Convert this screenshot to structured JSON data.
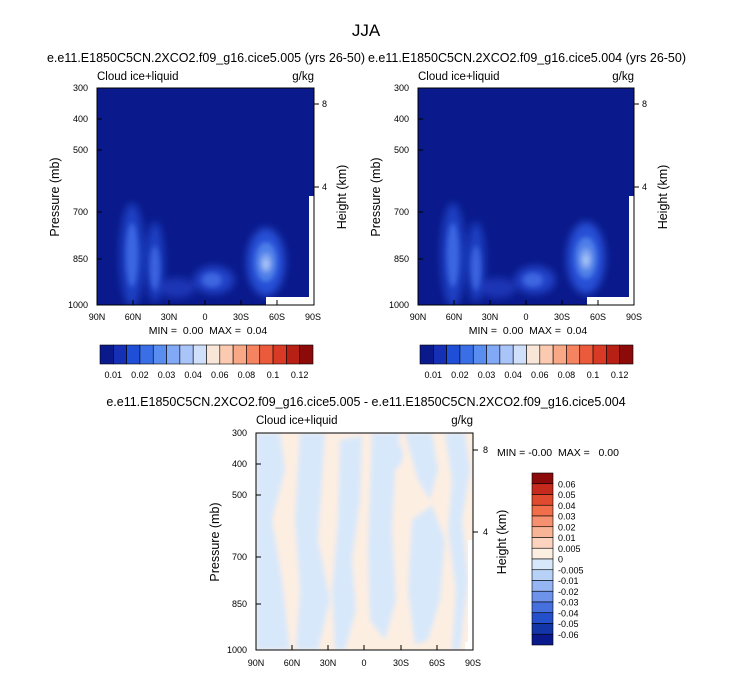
{
  "figure": {
    "title": "JJA"
  },
  "chart_data": [
    {
      "type": "heatmap",
      "panel": "top-left",
      "title": "e.e11.E1850C5CN.2XCO2.f09_g16.cice5.005 (yrs 26-50)",
      "left_label": "Cloud ice+liquid",
      "right_label": "g/kg",
      "ylabel": "Pressure (mb)",
      "y2label": "Height (km)",
      "x_ticks": [
        "90N",
        "60N",
        "30N",
        "0",
        "30S",
        "60S",
        "90S"
      ],
      "y_ticks": [
        "300",
        "400",
        "500",
        "700",
        "850",
        "1000"
      ],
      "y2_ticks": [
        "8",
        "4"
      ],
      "stats": "MIN =  0.00  MAX =  0.04",
      "min": 0.0,
      "max": 0.04,
      "features": [
        {
          "lat": 65,
          "p": 860,
          "value": 0.035
        },
        {
          "lat": 48,
          "p": 900,
          "value": 0.02
        },
        {
          "lat": -3,
          "p": 940,
          "value": 0.02
        },
        {
          "lat": -52,
          "p": 835,
          "value": 0.035
        }
      ]
    },
    {
      "type": "heatmap",
      "panel": "top-right",
      "title": "e.e11.E1850C5CN.2XCO2.f09_g16.cice5.004 (yrs 26-50)",
      "left_label": "Cloud ice+liquid",
      "right_label": "g/kg",
      "ylabel": "Pressure (mb)",
      "y2label": "Height (km)",
      "x_ticks": [
        "90N",
        "60N",
        "30N",
        "0",
        "30S",
        "60S",
        "90S"
      ],
      "y_ticks": [
        "300",
        "400",
        "500",
        "700",
        "850",
        "1000"
      ],
      "y2_ticks": [
        "8",
        "4"
      ],
      "stats": "MIN =  0.00  MAX =  0.04",
      "min": 0.0,
      "max": 0.04,
      "features": [
        {
          "lat": 65,
          "p": 860,
          "value": 0.035
        },
        {
          "lat": 48,
          "p": 900,
          "value": 0.02
        },
        {
          "lat": -3,
          "p": 940,
          "value": 0.02
        },
        {
          "lat": -52,
          "p": 835,
          "value": 0.035
        }
      ]
    },
    {
      "type": "heatmap",
      "panel": "bottom-difference",
      "title": "e.e11.E1850C5CN.2XCO2.f09_g16.cice5.005 - e.e11.E1850C5CN.2XCO2.f09_g16.cice5.004",
      "left_label": "Cloud ice+liquid",
      "right_label": "g/kg",
      "ylabel": "Pressure (mb)",
      "y2label": "Height (km)",
      "x_ticks": [
        "90N",
        "60N",
        "30N",
        "0",
        "30S",
        "60S",
        "90S"
      ],
      "y_ticks": [
        "300",
        "400",
        "500",
        "700",
        "850",
        "1000"
      ],
      "y2_ticks": [
        "8",
        "4"
      ],
      "stats": "MIN = -0.00  MAX =   0.00",
      "min": -0.0,
      "max": 0.0
    }
  ],
  "colorbars": {
    "top": {
      "orientation": "horizontal",
      "colors": [
        "#0a1a8c",
        "#1530b5",
        "#1f4fd6",
        "#3a6ee6",
        "#5a8df0",
        "#82a9f5",
        "#a9c4f8",
        "#d0e0fb",
        "#f8e6d8",
        "#fbcab0",
        "#f9a886",
        "#f5835f",
        "#ec5a3c",
        "#d93a25",
        "#b81f15",
        "#8c0a0a"
      ],
      "labels": [
        "0.01",
        "0.02",
        "0.03",
        "0.04",
        "0.06",
        "0.08",
        "0.1",
        "0.12"
      ]
    },
    "diff": {
      "orientation": "vertical",
      "colors": [
        "#8c0a0a",
        "#c62a1c",
        "#e04a2e",
        "#f06e4a",
        "#f59170",
        "#f8b496",
        "#fbd3bf",
        "#fdeee2",
        "#d8e8fb",
        "#b8d2f7",
        "#95b6f2",
        "#6d93ea",
        "#4670de",
        "#2550cc",
        "#1235a8",
        "#0a1a8c"
      ],
      "labels": [
        "0.06",
        "0.05",
        "0.04",
        "0.03",
        "0.02",
        "0.01",
        "0.005",
        "0",
        "-0.005",
        "-0.01",
        "-0.02",
        "-0.03",
        "-0.04",
        "-0.05",
        "-0.06"
      ]
    }
  }
}
